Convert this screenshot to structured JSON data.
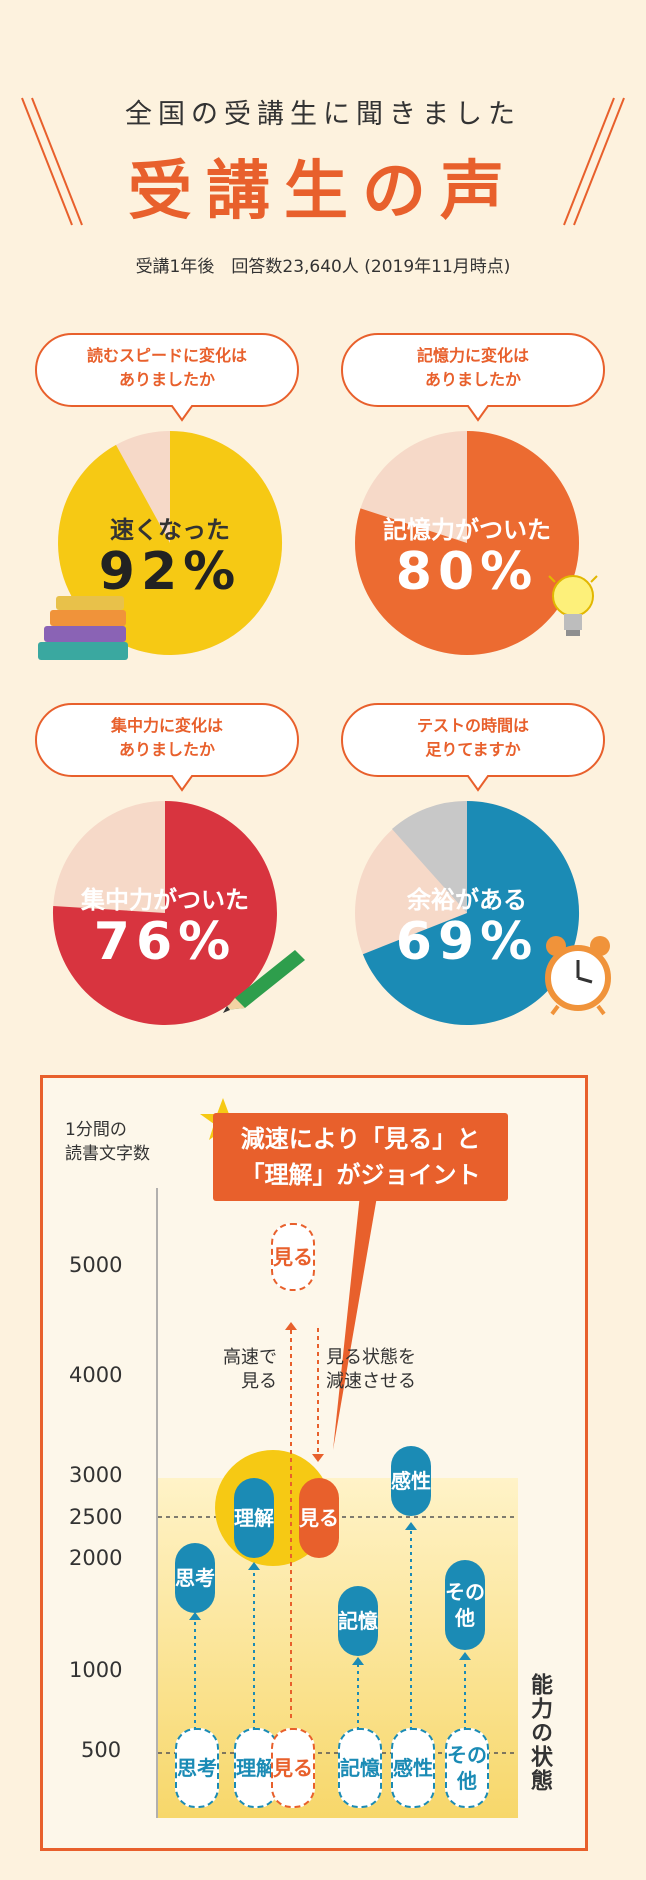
{
  "header": {
    "subtitle": "全国の受講生に聞きました",
    "title": "受講生の声",
    "meta": "受講1年後　回答数23,640人 (2019年11月時点)"
  },
  "pies": [
    {
      "question": [
        "読むスピードに変化は",
        "ありましたか"
      ],
      "label": "速くなった",
      "value": "92%",
      "percent": 92,
      "color": "#f6c914",
      "text_color": "#333333",
      "icon": "books-icon"
    },
    {
      "question": [
        "記憶力に変化は",
        "ありましたか"
      ],
      "label": "記憶力がついた",
      "value": "80%",
      "percent": 80,
      "color": "#ec6b31",
      "text_color": "#ffffff",
      "icon": "lightbulb-icon"
    },
    {
      "question": [
        "集中力に変化は",
        "ありましたか"
      ],
      "label": "集中力がついた",
      "value": "76%",
      "percent": 76,
      "color": "#d8343f",
      "text_color": "#ffffff",
      "icon": "pencil-icon"
    },
    {
      "question": [
        "テストの時間は",
        "足りてますか"
      ],
      "label": "余裕がある",
      "value": "69%",
      "percent": 69,
      "color": "#1b8bb5",
      "text_color": "#ffffff",
      "icon": "alarm-clock-icon"
    }
  ],
  "diagram": {
    "y_axis_title": [
      "1分間の",
      "読書文字数"
    ],
    "ticks": [
      "5000",
      "4000",
      "3000",
      "2500",
      "2000",
      "1000",
      "500"
    ],
    "callout": [
      "減速により「見る」と",
      "「理解」がジョイント"
    ],
    "note_left": [
      "高速で",
      "見る"
    ],
    "note_right": [
      "見る状態を",
      "減速させる"
    ],
    "x_axis_title": "能力の状態",
    "top_see": "見る",
    "upper_pills": [
      "思考",
      "理解",
      "見る",
      "記憶",
      "感性",
      "その他"
    ],
    "base_pills": [
      "思考",
      "理解",
      "見る",
      "記憶",
      "感性",
      "その他"
    ]
  }
}
